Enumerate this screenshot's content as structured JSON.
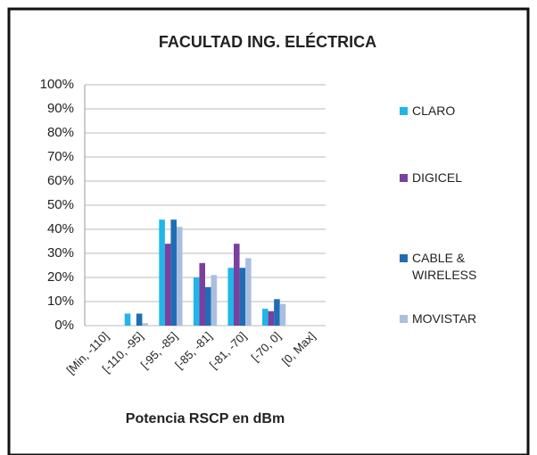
{
  "chart_data": {
    "type": "bar",
    "title": "FACULTAD ING. ELÉCTRICA",
    "x_label": "Potencia RSCP en dBm",
    "categories": [
      "[Min, -110]",
      "[-110, -95]",
      "[-95, -85]",
      "[-85, -81]",
      "[-81, -70]",
      "[-70, 0]",
      "[0, Max]"
    ],
    "series": [
      {
        "name": "CLARO",
        "color": "#1fb6e9",
        "values": [
          0,
          5,
          44,
          20,
          24,
          7,
          0
        ]
      },
      {
        "name": "DIGICEL",
        "color": "#7b3f9e",
        "values": [
          0,
          0,
          34,
          26,
          34,
          6,
          0
        ]
      },
      {
        "name": "CABLE & WIRELESS",
        "color": "#1f6db5",
        "values": [
          0,
          5,
          44,
          16,
          24,
          11,
          0
        ]
      },
      {
        "name": "MOVISTAR",
        "color": "#aabfe0",
        "values": [
          0,
          1,
          41,
          21,
          28,
          9,
          0
        ]
      }
    ],
    "ylim": [
      0,
      100
    ],
    "yticks": [
      {
        "value": 0,
        "label": "0%"
      },
      {
        "value": 10,
        "label": "10%"
      },
      {
        "value": 20,
        "label": "20%"
      },
      {
        "value": 30,
        "label": "30%"
      },
      {
        "value": 40,
        "label": "40%"
      },
      {
        "value": 50,
        "label": "50%"
      },
      {
        "value": 60,
        "label": "60%"
      },
      {
        "value": 70,
        "label": "70%"
      },
      {
        "value": 80,
        "label": "80%"
      },
      {
        "value": 90,
        "label": "90%"
      },
      {
        "value": 100,
        "label": "100%"
      }
    ],
    "grid": true,
    "legend": "right"
  }
}
